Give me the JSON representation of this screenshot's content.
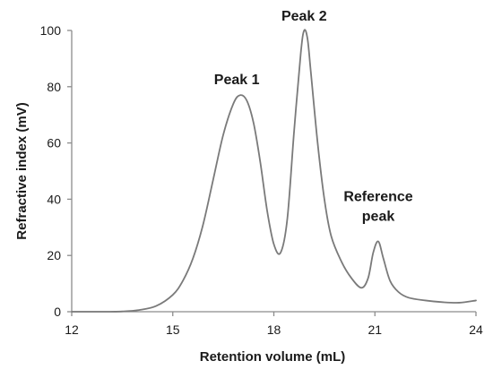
{
  "chart_data": {
    "type": "line",
    "title": "",
    "xlabel": "Retention volume (mL)",
    "ylabel": "Refractive index (mV)",
    "xlim": [
      12,
      24
    ],
    "ylim": [
      0,
      100
    ],
    "x_ticks": [
      12,
      15,
      18,
      21,
      24
    ],
    "y_ticks": [
      0,
      20,
      40,
      60,
      80,
      100
    ],
    "grid": false,
    "legend": "none",
    "line_color": "#7a7a7a",
    "axis_color": "#8c8c8c",
    "series": [
      {
        "x": [
          12,
          13,
          13.5,
          14,
          14.5,
          15,
          15.3,
          15.6,
          15.9,
          16.2,
          16.5,
          16.8,
          17.0,
          17.2,
          17.4,
          17.6,
          17.8,
          18.0,
          18.2,
          18.4,
          18.6,
          18.8,
          18.9,
          19.0,
          19.1,
          19.3,
          19.5,
          19.7,
          20.0,
          20.3,
          20.6,
          20.8,
          20.95,
          21.1,
          21.25,
          21.45,
          21.7,
          22.0,
          22.5,
          23.0,
          23.5,
          24.0
        ],
        "y": [
          0,
          0,
          0.1,
          0.6,
          2,
          6,
          11,
          19,
          31,
          47,
          63,
          74,
          77,
          75,
          67,
          53,
          36,
          24,
          21,
          33,
          64,
          92,
          100,
          97,
          85,
          60,
          40,
          27,
          18,
          12,
          8.5,
          12,
          21,
          25,
          19,
          11,
          7,
          5,
          4,
          3.4,
          3.2,
          4
        ]
      }
    ],
    "annotations": [
      {
        "text": "Peak 1",
        "x": 17.0,
        "y": 77
      },
      {
        "text": "Peak 2",
        "x": 18.9,
        "y": 100
      },
      {
        "line1": "Reference",
        "line2": "peak",
        "x": 21.1,
        "y": 25
      }
    ]
  }
}
